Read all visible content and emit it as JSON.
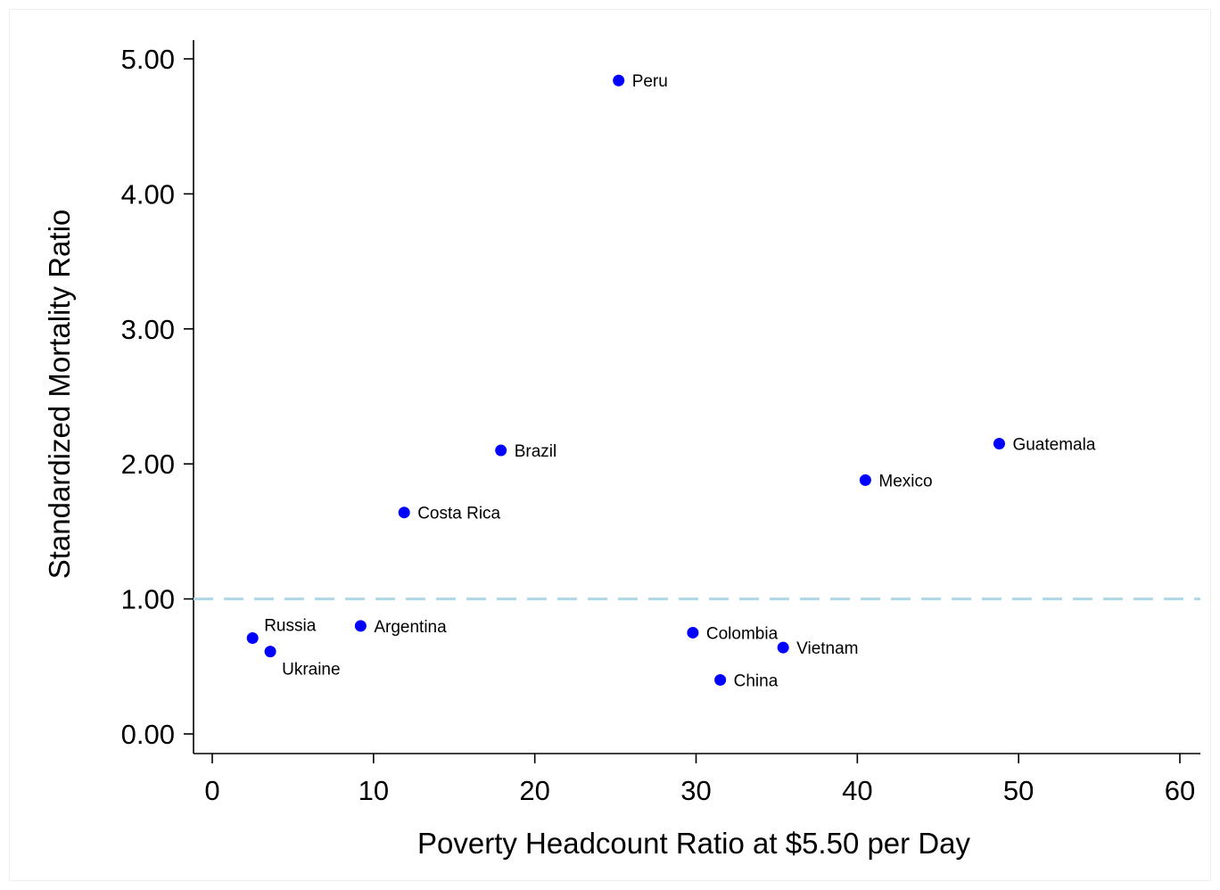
{
  "chart_data": {
    "type": "scatter",
    "title": "",
    "xlabel": "Poverty Headcount Ratio at $5.50 per Day",
    "ylabel": "Standardized Mortality Ratio",
    "xlim": [
      0,
      60
    ],
    "ylim": [
      0,
      5
    ],
    "xticks": [
      0,
      10,
      20,
      30,
      40,
      50,
      60
    ],
    "xtick_labels": [
      "0",
      "10",
      "20",
      "30",
      "40",
      "50",
      "60"
    ],
    "yticks": [
      0,
      1,
      2,
      3,
      4,
      5
    ],
    "ytick_labels": [
      "0.00",
      "1.00",
      "2.00",
      "3.00",
      "4.00",
      "5.00"
    ],
    "grid": false,
    "legend": "none",
    "point_color": "#0000ff",
    "reference_line": {
      "y": 1.0,
      "style": "dashed",
      "color": "#add8e6"
    },
    "points": [
      {
        "label": "Peru",
        "x": 25.2,
        "y": 4.84,
        "label_pos": "right"
      },
      {
        "label": "Brazil",
        "x": 17.9,
        "y": 2.1,
        "label_pos": "right"
      },
      {
        "label": "Costa Rica",
        "x": 11.9,
        "y": 1.64,
        "label_pos": "right"
      },
      {
        "label": "Guatemala",
        "x": 48.8,
        "y": 2.15,
        "label_pos": "right"
      },
      {
        "label": "Mexico",
        "x": 40.5,
        "y": 1.88,
        "label_pos": "right"
      },
      {
        "label": "Russia",
        "x": 2.5,
        "y": 0.71,
        "label_pos": "upper-right"
      },
      {
        "label": "Ukraine",
        "x": 3.6,
        "y": 0.61,
        "label_pos": "lower-right"
      },
      {
        "label": "Argentina",
        "x": 9.2,
        "y": 0.8,
        "label_pos": "right"
      },
      {
        "label": "Colombia",
        "x": 29.8,
        "y": 0.75,
        "label_pos": "right"
      },
      {
        "label": "Vietnam",
        "x": 35.4,
        "y": 0.64,
        "label_pos": "right"
      },
      {
        "label": "China",
        "x": 31.5,
        "y": 0.4,
        "label_pos": "right"
      }
    ]
  }
}
